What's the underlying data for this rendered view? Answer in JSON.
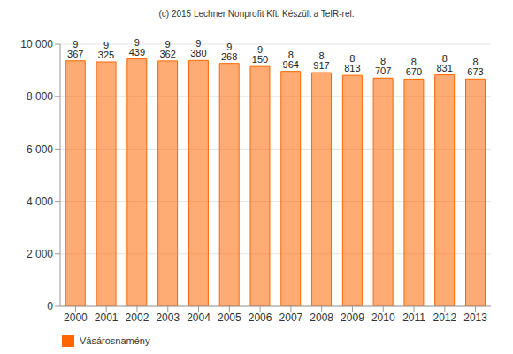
{
  "chart_data": {
    "type": "bar",
    "title": "(c) 2015 Lechner Nonprofit Kft. Készült a TeIR-rel.",
    "categories": [
      "2000",
      "2001",
      "2002",
      "2003",
      "2004",
      "2005",
      "2006",
      "2007",
      "2008",
      "2009",
      "2010",
      "2011",
      "2012",
      "2013"
    ],
    "series": [
      {
        "name": "Vásárosnamény",
        "color": "#ff6600",
        "values": [
          9367,
          9325,
          9439,
          9362,
          9380,
          9268,
          9150,
          8964,
          8917,
          8813,
          8707,
          8670,
          8831,
          8673
        ],
        "value_labels": [
          "9 367",
          "9 325",
          "9 439",
          "9 362",
          "9 380",
          "9 268",
          "9 150",
          "8 964",
          "8 917",
          "8 813",
          "8 707",
          "8 670",
          "8 831",
          "8 673"
        ]
      }
    ],
    "ylim": [
      0,
      10000
    ],
    "yticks": [
      0,
      {
        "value": 2000,
        "label": "2 000"
      },
      {
        "value": 4000,
        "label": "4 000"
      },
      {
        "value": 6000,
        "label": "6 000"
      },
      {
        "value": 8000,
        "label": "8 000"
      },
      {
        "value": 10000,
        "label": "10 000"
      }
    ],
    "grid": true,
    "data_labels": true,
    "legend": "bottom-left"
  }
}
